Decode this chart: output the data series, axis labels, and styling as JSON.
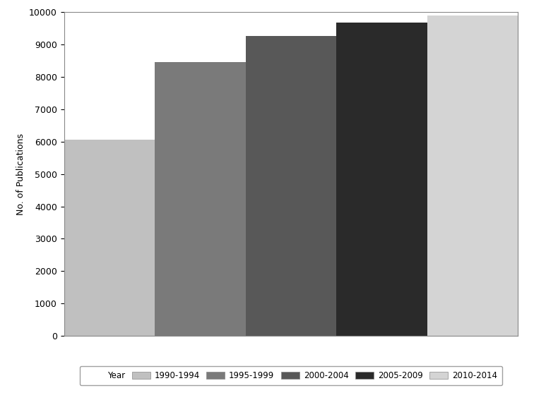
{
  "categories": [
    "1990-1994",
    "1995-1999",
    "2000-2004",
    "2005-2009",
    "2010-2014"
  ],
  "values": [
    6055,
    8450,
    9250,
    9680,
    9890
  ],
  "bar_colors": [
    "#c0c0c0",
    "#7a7a7a",
    "#585858",
    "#2a2a2a",
    "#d4d4d4"
  ],
  "ylabel": "No. of Publications",
  "ylim": [
    0,
    10000
  ],
  "yticks": [
    0,
    1000,
    2000,
    3000,
    4000,
    5000,
    6000,
    7000,
    8000,
    9000,
    10000
  ],
  "legend_label": "Year",
  "background_color": "#ffffff",
  "bar_width": 1.0
}
